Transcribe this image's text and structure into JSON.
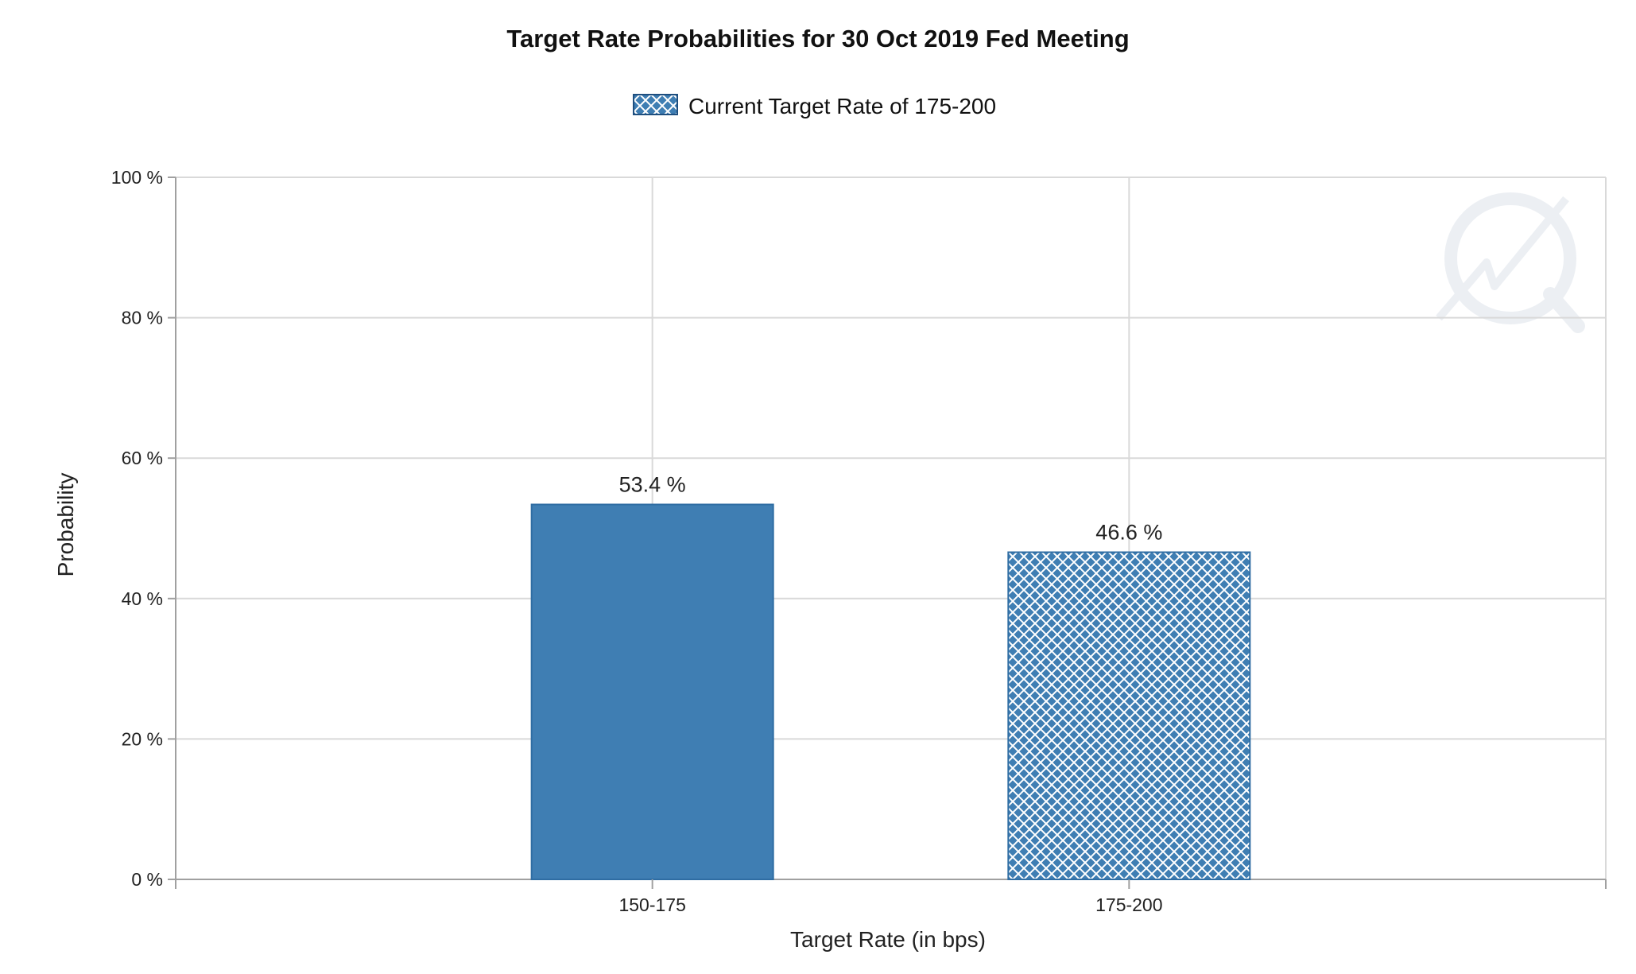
{
  "chart_data": {
    "type": "bar",
    "title": "Target Rate Probabilities for 30 Oct 2019 Fed Meeting",
    "xlabel": "Target Rate (in bps)",
    "ylabel": "Probability",
    "categories": [
      "150-175",
      "175-200"
    ],
    "values": [
      53.4,
      46.6
    ],
    "data_labels": [
      "53.4 %",
      "46.6 %"
    ],
    "highlight_index": 1,
    "ylim": [
      0,
      100
    ],
    "yticks": [
      0,
      20,
      40,
      60,
      80,
      100
    ],
    "ytick_labels": [
      "0 %",
      "20 %",
      "40 %",
      "60 %",
      "80 %",
      "100 %"
    ],
    "legend": {
      "position": "top-center",
      "entries": [
        {
          "label": "Current Target Rate of 175-200",
          "pattern": "crosshatch"
        }
      ]
    },
    "grid": true,
    "colors": {
      "bar": "#3f7eb3",
      "bar_border": "#2f6da3",
      "hatch_line": "#ffffff",
      "grid": "#d9d9d9",
      "axis": "#a0a0a0"
    }
  }
}
